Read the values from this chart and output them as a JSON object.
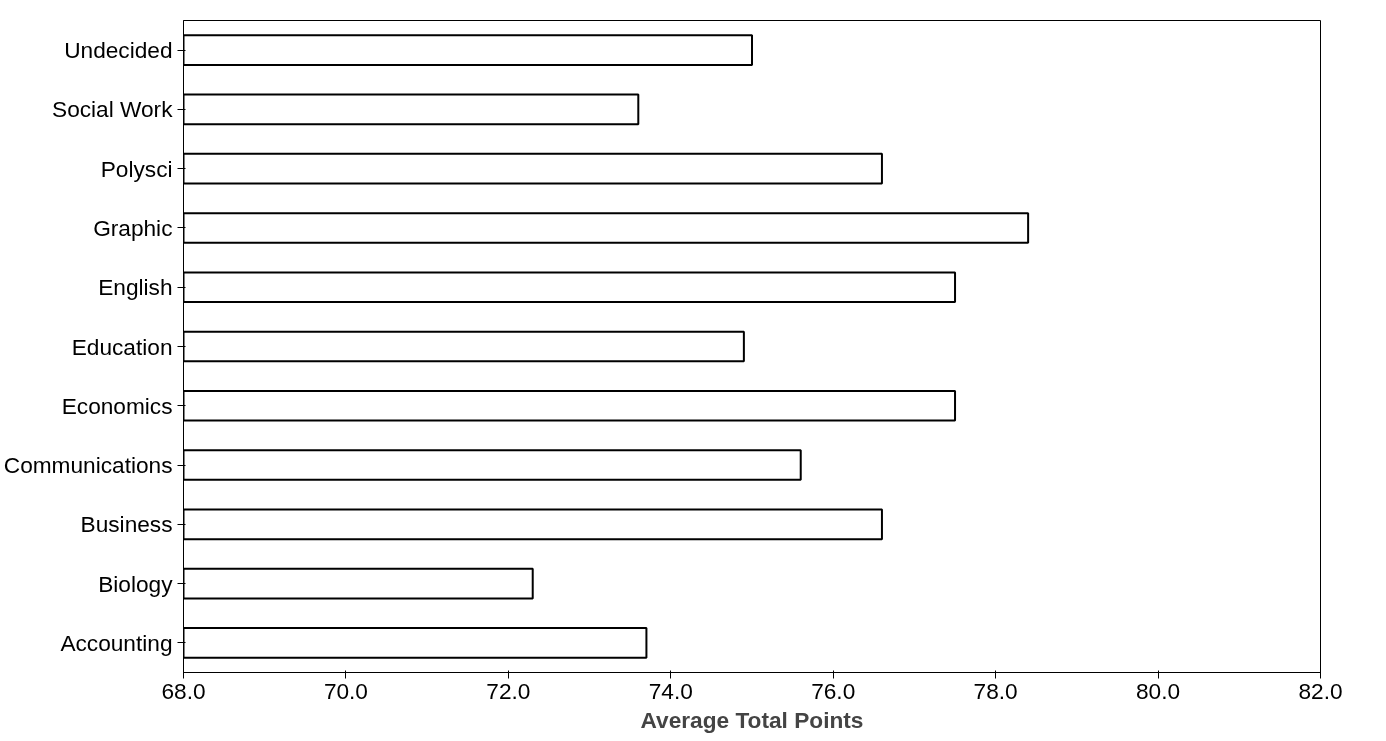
{
  "chart_data": {
    "type": "bar",
    "orientation": "horizontal",
    "xlabel": "Average Total Points",
    "categories": [
      "Undecided",
      "Social Work",
      "Polysci",
      "Graphic",
      "English",
      "Education",
      "Economics",
      "Communications",
      "Business",
      "Biology",
      "Accounting"
    ],
    "values": [
      75.0,
      73.6,
      76.6,
      78.4,
      77.5,
      74.9,
      77.5,
      75.6,
      76.6,
      72.3,
      73.7
    ],
    "color": "#ffffff",
    "xlim": [
      68.0,
      82.0
    ],
    "xticks": [
      {
        "value": 68,
        "label": "68.0"
      },
      {
        "value": 70,
        "label": "70.0"
      },
      {
        "value": 72,
        "label": "72.0"
      },
      {
        "value": 74,
        "label": "74.0"
      },
      {
        "value": 76,
        "label": "76.0"
      },
      {
        "value": 78,
        "label": "78.0"
      },
      {
        "value": 80,
        "label": "80.0"
      },
      {
        "value": 82,
        "label": "82.0"
      }
    ],
    "grid": false
  }
}
